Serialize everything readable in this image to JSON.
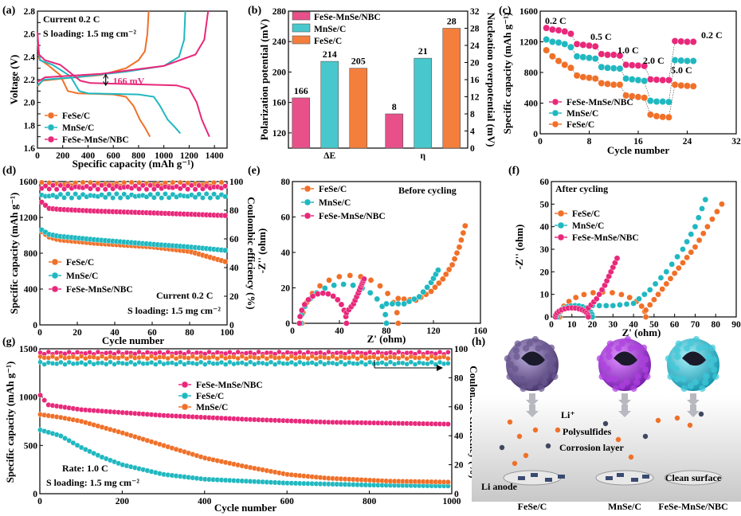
{
  "chart_data": [
    {
      "panel": "a",
      "type": "line",
      "xlabel": "Specific capacity (mAh g⁻¹)",
      "ylabel": "Voltage (V)",
      "xlim": [
        0,
        1500
      ],
      "ylim": [
        1.6,
        2.8
      ],
      "xticks": [
        0,
        200,
        400,
        600,
        800,
        1000,
        1200,
        1400
      ],
      "yticks": [
        1.6,
        1.7,
        1.8,
        1.9,
        2.0,
        2.1,
        2.2,
        2.3,
        2.4,
        2.5,
        2.6,
        2.7,
        2.8
      ],
      "ytick_labels": [
        "1.6",
        "",
        "1.8",
        "",
        "2.0",
        "",
        "2.2",
        "",
        "2.4",
        "",
        "2.6",
        "",
        "2.8"
      ],
      "annotations": [
        "Current 0.2 C",
        "S loading: 1.5 mg cm⁻²",
        "166 mV"
      ],
      "legend": "bottom-left",
      "series": [
        {
          "name": "FeSe/C",
          "color": "#F07028",
          "discharge": [
            [
              0,
              2.54
            ],
            [
              15,
              2.38
            ],
            [
              80,
              2.33
            ],
            [
              180,
              2.24
            ],
            [
              240,
              2.1
            ],
            [
              320,
              2.08
            ],
            [
              600,
              2.07
            ],
            [
              700,
              2.05
            ],
            [
              760,
              1.97
            ],
            [
              810,
              1.85
            ],
            [
              850,
              1.78
            ],
            [
              890,
              1.7
            ]
          ],
          "charge": [
            [
              0,
              2.14
            ],
            [
              40,
              2.19
            ],
            [
              200,
              2.21
            ],
            [
              500,
              2.24
            ],
            [
              700,
              2.3
            ],
            [
              800,
              2.37
            ],
            [
              850,
              2.45
            ],
            [
              870,
              2.6
            ],
            [
              880,
              2.8
            ]
          ]
        },
        {
          "name": "MnSe/C",
          "color": "#20B8C0",
          "discharge": [
            [
              0,
              2.55
            ],
            [
              20,
              2.37
            ],
            [
              120,
              2.33
            ],
            [
              260,
              2.23
            ],
            [
              330,
              2.1
            ],
            [
              400,
              2.08
            ],
            [
              800,
              2.07
            ],
            [
              920,
              2.05
            ],
            [
              970,
              1.97
            ],
            [
              1030,
              1.85
            ],
            [
              1090,
              1.78
            ],
            [
              1130,
              1.73
            ]
          ],
          "charge": [
            [
              0,
              2.15
            ],
            [
              50,
              2.2
            ],
            [
              300,
              2.22
            ],
            [
              700,
              2.27
            ],
            [
              1000,
              2.32
            ],
            [
              1120,
              2.4
            ],
            [
              1160,
              2.55
            ],
            [
              1170,
              2.8
            ]
          ]
        },
        {
          "name": "FeSe-MnSe/NBC",
          "color": "#E8287A",
          "discharge": [
            [
              0,
              2.62
            ],
            [
              12,
              2.42
            ],
            [
              60,
              2.37
            ],
            [
              180,
              2.33
            ],
            [
              340,
              2.19
            ],
            [
              420,
              2.17
            ],
            [
              1100,
              2.15
            ],
            [
              1200,
              2.12
            ],
            [
              1260,
              2.0
            ],
            [
              1300,
              1.85
            ],
            [
              1340,
              1.75
            ],
            [
              1360,
              1.7
            ]
          ],
          "charge": [
            [
              0,
              2.18
            ],
            [
              60,
              2.22
            ],
            [
              500,
              2.25
            ],
            [
              1000,
              2.32
            ],
            [
              1250,
              2.42
            ],
            [
              1320,
              2.55
            ],
            [
              1350,
              2.8
            ]
          ]
        }
      ]
    },
    {
      "panel": "b",
      "type": "bar",
      "categories": [
        "ΔE",
        "η"
      ],
      "ylabel": "Polarization potential (mV)",
      "y2label": "Nucleation overpotential (mV)",
      "ylim": [
        100,
        280
      ],
      "y2lim": [
        0,
        32
      ],
      "yticks": [
        120,
        160,
        200,
        240,
        280
      ],
      "y2ticks": [
        0,
        4,
        8,
        12,
        16,
        20,
        24,
        28,
        32
      ],
      "legend": "top-left",
      "series": [
        {
          "name": "FeSe-MnSe/NBC",
          "color": "#E8508A",
          "values": [
            166,
            8
          ]
        },
        {
          "name": "MnSe/C",
          "color": "#48C8CC",
          "values": [
            214,
            21
          ]
        },
        {
          "name": "FeSe/C",
          "color": "#F47E3C",
          "values": [
            205,
            28
          ]
        }
      ]
    },
    {
      "panel": "c",
      "type": "scatter",
      "xlabel": "Cycle number",
      "ylabel": "Specific capacity (mAh g⁻¹)",
      "xlim": [
        0,
        32
      ],
      "ylim": [
        0,
        1600
      ],
      "xticks": [
        0,
        8,
        16,
        24,
        32
      ],
      "yticks": [
        0,
        400,
        800,
        1200,
        1600
      ],
      "annotations": [
        "0.2 C",
        "0.5 C",
        "1.0 C",
        "2.0 C",
        "5.0 C",
        "0.2 C"
      ],
      "legend": "bottom-left",
      "series": [
        {
          "name": "FeSe-MnSe/NBC",
          "color": "#E8287A",
          "values": [
            1380,
            1360,
            1350,
            1335,
            1305,
            1170,
            1160,
            1150,
            1140,
            1040,
            1030,
            1030,
            1020,
            900,
            895,
            890,
            885,
            710,
            705,
            700,
            700,
            1210,
            1205,
            1200,
            1200
          ]
        },
        {
          "name": "MnSe/C",
          "color": "#20B8C0",
          "values": [
            1230,
            1200,
            1190,
            1170,
            1130,
            1010,
            1000,
            990,
            980,
            870,
            860,
            855,
            850,
            720,
            710,
            700,
            690,
            430,
            420,
            420,
            415,
            960,
            955,
            950,
            950
          ]
        },
        {
          "name": "FeSe/C",
          "color": "#F07028",
          "values": [
            1090,
            1010,
            950,
            900,
            860,
            760,
            740,
            730,
            720,
            660,
            650,
            640,
            640,
            500,
            490,
            480,
            470,
            250,
            230,
            220,
            215,
            640,
            630,
            625,
            620
          ]
        }
      ]
    },
    {
      "panel": "d",
      "type": "scatter",
      "xlabel": "Cycle number",
      "ylabel": "Specific capacity (mAh g⁻¹)",
      "y2label": "Coulombic efficiency (%)",
      "xlim": [
        0,
        100
      ],
      "ylim": [
        0,
        1600
      ],
      "y2lim": [
        0,
        100
      ],
      "xticks": [
        0,
        20,
        40,
        60,
        80,
        100
      ],
      "yticks": [
        0,
        400,
        800,
        1200,
        1600
      ],
      "y2ticks": [
        0,
        20,
        40,
        60,
        80,
        100
      ],
      "annotations": [
        "Current 0.2 C",
        "S loading: 1.5 mg cm⁻²"
      ],
      "legend": "bottom-left",
      "series": [
        {
          "name": "FeSe/C",
          "color": "#F07028",
          "capacity_points": [
            [
              1,
              1040
            ],
            [
              5,
              980
            ],
            [
              10,
              950
            ],
            [
              30,
              910
            ],
            [
              60,
              870
            ],
            [
              80,
              820
            ],
            [
              90,
              760
            ],
            [
              100,
              700
            ]
          ],
          "ce_percent": 98
        },
        {
          "name": "MnSe/C",
          "color": "#20B8C0",
          "capacity_points": [
            [
              1,
              1060
            ],
            [
              5,
              1010
            ],
            [
              10,
              990
            ],
            [
              30,
              950
            ],
            [
              60,
              900
            ],
            [
              80,
              870
            ],
            [
              100,
              830
            ]
          ],
          "ce_percent": 90
        },
        {
          "name": "FeSe-MnSe/NBC",
          "color": "#E8287A",
          "capacity_points": [
            [
              1,
              1370
            ],
            [
              5,
              1300
            ],
            [
              10,
              1290
            ],
            [
              30,
              1270
            ],
            [
              60,
              1250
            ],
            [
              100,
              1220
            ]
          ],
          "ce_percent": 96
        }
      ]
    },
    {
      "panel": "e",
      "type": "scatter",
      "title": "Before cycling",
      "xlabel": "Z' (ohm)",
      "ylabel": "-Z'' (ohm)",
      "xlim": [
        0,
        160
      ],
      "ylim": [
        0,
        80
      ],
      "xticks": [
        0,
        40,
        80,
        120,
        160
      ],
      "yticks": [
        0,
        20,
        40,
        60,
        80
      ],
      "legend": "top-left",
      "series": [
        {
          "name": "FeSe/C",
          "color": "#F07028",
          "arc": {
            "start": 8,
            "end": 90,
            "height": 27
          },
          "tail": [
            [
              90,
              14
            ],
            [
              105,
              13
            ],
            [
              118,
              18
            ],
            [
              128,
              25
            ],
            [
              136,
              33
            ],
            [
              142,
              43
            ],
            [
              147,
              55
            ]
          ]
        },
        {
          "name": "MnSe/C",
          "color": "#20B8C0",
          "arc": {
            "start": 7,
            "end": 80,
            "height": 22
          },
          "tail": [
            [
              80,
              11
            ],
            [
              95,
              11
            ],
            [
              108,
              15
            ],
            [
              118,
              23
            ],
            [
              124,
              30
            ]
          ]
        },
        {
          "name": "FeSe-MnSe/NBC",
          "color": "#E8287A",
          "arc": {
            "start": 6,
            "end": 46,
            "height": 17
          },
          "tail": [
            [
              46,
              6
            ],
            [
              52,
              11
            ],
            [
              56,
              17
            ],
            [
              59,
              22
            ],
            [
              61,
              25
            ]
          ]
        }
      ]
    },
    {
      "panel": "f",
      "type": "scatter",
      "title": "After cycling",
      "xlabel": "Z' (ohm)",
      "ylabel": "-Z'' (ohm)",
      "xlim": [
        0,
        90
      ],
      "ylim": [
        0,
        60
      ],
      "xticks": [
        0,
        10,
        20,
        30,
        40,
        50,
        60,
        70,
        80,
        90
      ],
      "yticks": [
        0,
        10,
        20,
        30,
        40,
        50,
        60
      ],
      "legend": "top-left",
      "series": [
        {
          "name": "FeSe/C",
          "color": "#F07028",
          "arc": {
            "start": 4,
            "end": 46,
            "height": 11
          },
          "tail": [
            [
              46,
              3
            ],
            [
              52,
              10
            ],
            [
              58,
              17
            ],
            [
              64,
              24
            ],
            [
              70,
              31
            ],
            [
              76,
              40
            ],
            [
              83,
              50
            ]
          ]
        },
        {
          "name": "MnSe/C",
          "color": "#20B8C0",
          "arc": {
            "start": 3,
            "end": 20,
            "height": 5
          },
          "tail": [
            [
              20,
              5
            ],
            [
              30,
              5
            ],
            [
              40,
              6
            ],
            [
              48,
              12
            ],
            [
              56,
              20
            ],
            [
              64,
              30
            ],
            [
              70,
              40
            ],
            [
              75,
              52
            ]
          ]
        },
        {
          "name": "FeSe-MnSe/NBC",
          "color": "#E8287A",
          "arc": {
            "start": 2,
            "end": 18,
            "height": 4
          },
          "tail": [
            [
              18,
              4
            ],
            [
              22,
              8
            ],
            [
              26,
              14
            ],
            [
              29,
              20
            ],
            [
              32,
              26
            ]
          ]
        }
      ]
    },
    {
      "panel": "g",
      "type": "scatter",
      "xlabel": "Cycle number",
      "ylabel": "Specific capacity (mAh g⁻¹)",
      "y2label": "Coulombic efficiency (%)",
      "xlim": [
        0,
        1000
      ],
      "ylim": [
        0,
        1500
      ],
      "y2lim": [
        0,
        100
      ],
      "xticks": [
        0,
        200,
        400,
        600,
        800,
        1000
      ],
      "yticks": [
        0,
        500,
        1000,
        1500
      ],
      "y2ticks": [
        0,
        20,
        40,
        60,
        80,
        100
      ],
      "annotations": [
        "Rate: 1.0 C",
        "S loading: 1.5 mg cm⁻²"
      ],
      "legend": "top-center",
      "series": [
        {
          "name": "FeSe-MnSe/NBC",
          "color": "#E8287A",
          "capacity_points": [
            [
              1,
              1020
            ],
            [
              20,
              920
            ],
            [
              100,
              870
            ],
            [
              300,
              810
            ],
            [
              500,
              770
            ],
            [
              700,
              740
            ],
            [
              1000,
              720
            ]
          ],
          "ce_percent": 97
        },
        {
          "name": "FeSe/C",
          "color": "#20B8C0",
          "capacity_points": [
            [
              1,
              660
            ],
            [
              50,
              600
            ],
            [
              100,
              480
            ],
            [
              150,
              380
            ],
            [
              200,
              300
            ],
            [
              300,
              200
            ],
            [
              400,
              150
            ],
            [
              600,
              110
            ],
            [
              800,
              90
            ],
            [
              1000,
              80
            ]
          ],
          "ce_percent": 90
        },
        {
          "name": "MnSe/C",
          "color": "#F07028",
          "capacity_points": [
            [
              1,
              820
            ],
            [
              50,
              790
            ],
            [
              100,
              750
            ],
            [
              200,
              630
            ],
            [
              300,
              500
            ],
            [
              400,
              370
            ],
            [
              500,
              280
            ],
            [
              600,
              200
            ],
            [
              700,
              160
            ],
            [
              850,
              130
            ],
            [
              1000,
              120
            ]
          ],
          "ce_percent": 94
        }
      ]
    }
  ],
  "panel_labels": [
    "(a)",
    "(b)",
    "(c)",
    "(d)",
    "(e)",
    "(f)",
    "(g)",
    "(h)"
  ],
  "schematic_h": {
    "labels": [
      "Li⁺",
      "Polysulfides",
      "Corrosion layer",
      "Li anode",
      "Clean surface"
    ],
    "names": [
      "FeSe/C",
      "MnSe/C",
      "FeSe-MnSe/NBC"
    ],
    "sphere_colors": [
      "#6A5890",
      "#B040E0",
      "#40C8D8"
    ]
  }
}
